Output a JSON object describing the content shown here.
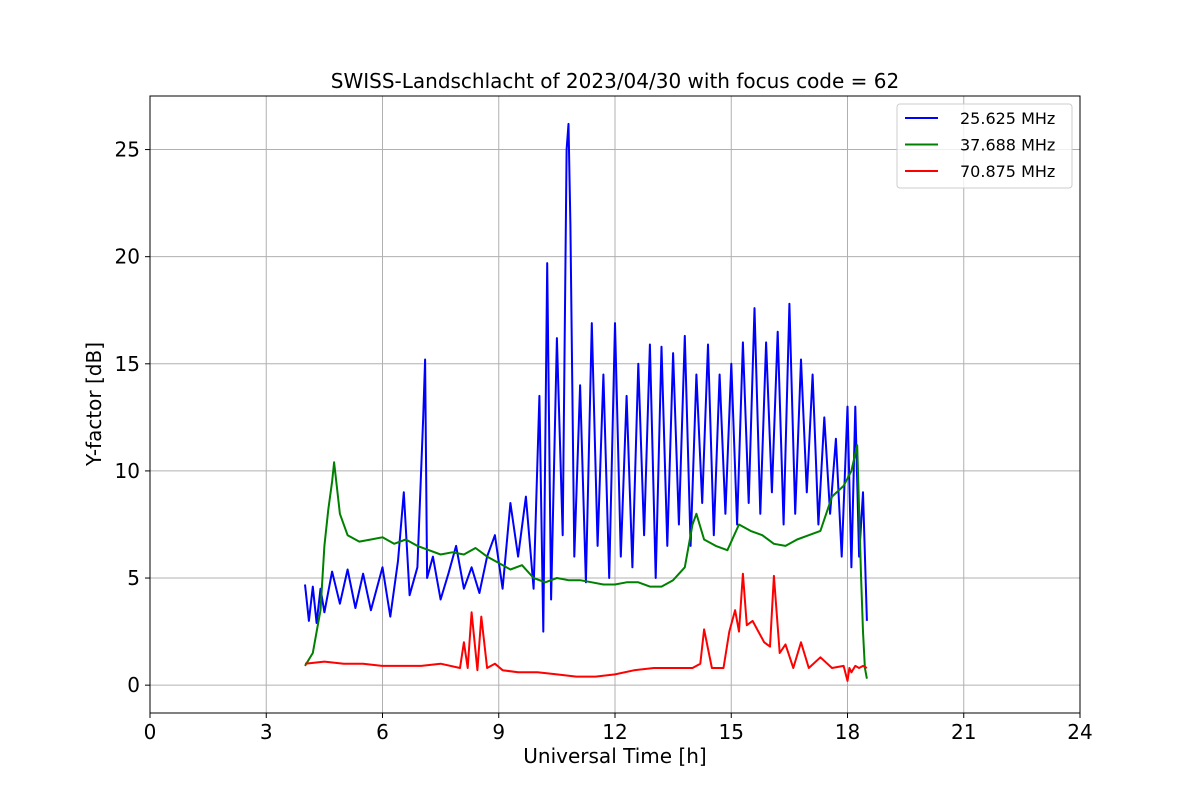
{
  "chart_data": {
    "type": "line",
    "title": "SWISS-Landschlacht of 2023/04/30 with focus code = 62",
    "xlabel": "Universal Time [h]",
    "ylabel": "Y-factor [dB]",
    "xlim": [
      0,
      24
    ],
    "ylim": [
      -1.3,
      27.5
    ],
    "x_ticks": [
      0,
      3,
      6,
      9,
      12,
      15,
      18,
      21,
      24
    ],
    "x_tick_labels": [
      "0",
      "3",
      "6",
      "9",
      "12",
      "15",
      "18",
      "21",
      "24"
    ],
    "y_ticks": [
      0,
      5,
      10,
      15,
      20,
      25
    ],
    "y_tick_labels": [
      "0",
      "5",
      "10",
      "15",
      "20",
      "25"
    ],
    "grid": true,
    "legend_position": "top-right",
    "series": [
      {
        "name": "25.625 MHz",
        "color": "#0000ff",
        "x": [
          4.0,
          4.1,
          4.2,
          4.3,
          4.4,
          4.5,
          4.7,
          4.9,
          5.1,
          5.3,
          5.5,
          5.7,
          6.0,
          6.2,
          6.4,
          6.55,
          6.7,
          6.9,
          7.05,
          7.1,
          7.15,
          7.3,
          7.5,
          7.7,
          7.9,
          8.1,
          8.3,
          8.5,
          8.7,
          8.9,
          9.1,
          9.3,
          9.5,
          9.7,
          9.9,
          10.05,
          10.15,
          10.25,
          10.35,
          10.5,
          10.65,
          10.75,
          10.8,
          10.85,
          10.95,
          11.1,
          11.25,
          11.4,
          11.55,
          11.7,
          11.85,
          12.0,
          12.15,
          12.3,
          12.45,
          12.6,
          12.75,
          12.9,
          13.05,
          13.2,
          13.35,
          13.5,
          13.65,
          13.8,
          13.95,
          14.1,
          14.25,
          14.4,
          14.55,
          14.7,
          14.85,
          15.0,
          15.15,
          15.3,
          15.45,
          15.6,
          15.75,
          15.9,
          16.05,
          16.2,
          16.35,
          16.5,
          16.65,
          16.8,
          16.95,
          17.1,
          17.25,
          17.4,
          17.55,
          17.7,
          17.85,
          18.0,
          18.1,
          18.2,
          18.3,
          18.4,
          18.5
        ],
        "values": [
          4.7,
          3.0,
          4.6,
          2.9,
          4.5,
          3.4,
          5.3,
          3.8,
          5.4,
          3.6,
          5.2,
          3.5,
          5.5,
          3.2,
          5.8,
          9.0,
          4.2,
          5.5,
          12.5,
          15.2,
          5.0,
          6.0,
          4.0,
          5.2,
          6.5,
          4.5,
          5.5,
          4.3,
          6.0,
          7.0,
          4.5,
          8.5,
          6.0,
          8.8,
          4.5,
          13.5,
          2.5,
          19.7,
          4.0,
          16.2,
          7.0,
          25.0,
          26.2,
          21.5,
          6.0,
          14.0,
          4.8,
          16.9,
          6.5,
          14.5,
          5.0,
          16.9,
          6.0,
          13.5,
          5.5,
          15.0,
          7.0,
          15.9,
          5.0,
          15.8,
          6.5,
          15.5,
          7.5,
          16.3,
          6.5,
          14.5,
          8.5,
          15.9,
          7.0,
          14.5,
          8.0,
          15.0,
          7.5,
          16.0,
          8.5,
          17.6,
          8.0,
          16.0,
          9.0,
          16.5,
          7.5,
          17.8,
          8.0,
          15.2,
          9.0,
          14.5,
          7.5,
          12.5,
          8.0,
          11.5,
          6.0,
          13.0,
          5.5,
          13.0,
          6.0,
          9.0,
          3.0
        ]
      },
      {
        "name": "37.688 MHz",
        "color": "#008000",
        "x": [
          4.0,
          4.2,
          4.4,
          4.5,
          4.6,
          4.7,
          4.75,
          4.9,
          5.1,
          5.4,
          5.7,
          6.0,
          6.3,
          6.6,
          6.9,
          7.2,
          7.5,
          7.8,
          8.1,
          8.4,
          8.7,
          9.0,
          9.3,
          9.6,
          9.9,
          10.2,
          10.5,
          10.8,
          11.1,
          11.4,
          11.7,
          12.0,
          12.3,
          12.6,
          12.9,
          13.2,
          13.5,
          13.8,
          14.0,
          14.1,
          14.3,
          14.6,
          14.9,
          15.2,
          15.5,
          15.8,
          16.1,
          16.4,
          16.7,
          17.0,
          17.3,
          17.6,
          17.9,
          18.1,
          18.25,
          18.35,
          18.4,
          18.45,
          18.5
        ],
        "values": [
          0.9,
          1.5,
          3.5,
          6.5,
          8.2,
          9.5,
          10.4,
          8.0,
          7.0,
          6.7,
          6.8,
          6.9,
          6.6,
          6.8,
          6.5,
          6.3,
          6.1,
          6.2,
          6.1,
          6.4,
          6.0,
          5.7,
          5.4,
          5.6,
          5.0,
          4.8,
          5.0,
          4.9,
          4.9,
          4.8,
          4.7,
          4.7,
          4.8,
          4.8,
          4.6,
          4.6,
          4.9,
          5.5,
          7.5,
          8.0,
          6.8,
          6.5,
          6.3,
          7.5,
          7.2,
          7.0,
          6.6,
          6.5,
          6.8,
          7.0,
          7.2,
          8.8,
          9.3,
          10.0,
          11.2,
          5.0,
          2.5,
          0.8,
          0.3
        ]
      },
      {
        "name": "70.875 MHz",
        "color": "#ff0000",
        "x": [
          4.0,
          4.5,
          5.0,
          5.5,
          6.0,
          6.5,
          7.0,
          7.5,
          8.0,
          8.1,
          8.2,
          8.3,
          8.45,
          8.55,
          8.7,
          8.9,
          9.1,
          9.5,
          10.0,
          10.5,
          11.0,
          11.5,
          12.0,
          12.5,
          13.0,
          13.5,
          14.0,
          14.2,
          14.3,
          14.5,
          14.8,
          14.95,
          15.1,
          15.2,
          15.3,
          15.4,
          15.55,
          15.7,
          15.85,
          16.0,
          16.1,
          16.25,
          16.4,
          16.6,
          16.8,
          17.0,
          17.3,
          17.6,
          17.9,
          18.0,
          18.05,
          18.1,
          18.2,
          18.3,
          18.4,
          18.5
        ],
        "values": [
          1.0,
          1.1,
          1.0,
          1.0,
          0.9,
          0.9,
          0.9,
          1.0,
          0.8,
          2.0,
          0.8,
          3.4,
          0.7,
          3.2,
          0.8,
          1.0,
          0.7,
          0.6,
          0.6,
          0.5,
          0.4,
          0.4,
          0.5,
          0.7,
          0.8,
          0.8,
          0.8,
          1.0,
          2.6,
          0.8,
          0.8,
          2.5,
          3.5,
          2.5,
          5.2,
          2.8,
          3.0,
          2.5,
          2.0,
          1.8,
          5.1,
          1.5,
          1.9,
          0.8,
          2.0,
          0.8,
          1.3,
          0.8,
          0.9,
          0.2,
          0.8,
          0.6,
          0.9,
          0.8,
          0.9,
          0.8
        ]
      }
    ]
  }
}
